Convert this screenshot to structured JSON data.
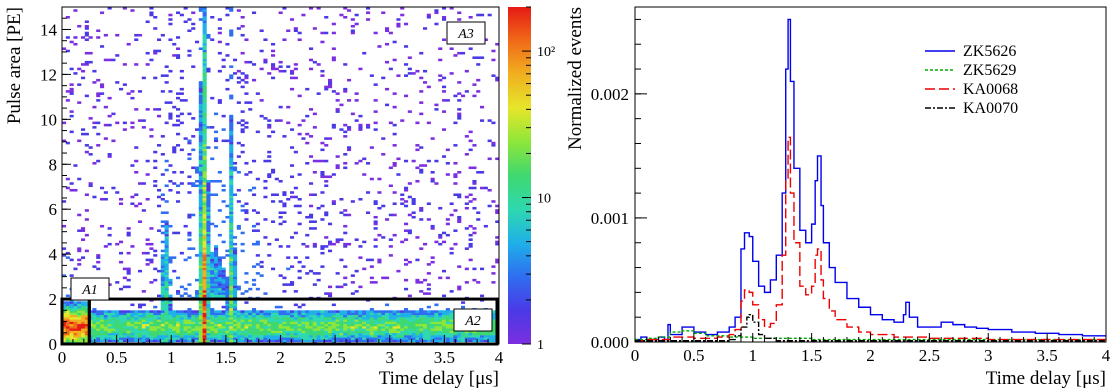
{
  "chart_data": [
    {
      "type": "heatmap",
      "xlabel": "Time delay [μs]",
      "ylabel": "Pulse area [PE]",
      "xlim": [
        0,
        4
      ],
      "ylim": [
        0,
        15
      ],
      "x_ticks": [
        0,
        0.5,
        1,
        1.5,
        2,
        2.5,
        3,
        3.5,
        4
      ],
      "x_tick_labels": [
        "0",
        "0.5",
        "1",
        "1.5",
        "2",
        "2.5",
        "3",
        "3.5",
        "4"
      ],
      "y_ticks": [
        0,
        2,
        4,
        6,
        8,
        10,
        12,
        14
      ],
      "y_tick_labels": [
        "0",
        "2",
        "4",
        "6",
        "8",
        "10",
        "12",
        "14"
      ],
      "colorbar": {
        "scale": "log",
        "range": [
          1,
          200
        ],
        "ticks": [
          1,
          10,
          100
        ],
        "tick_labels": [
          "1",
          "10",
          "10²"
        ]
      },
      "color_stops": [
        "#7b2fe0",
        "#4a3ae6",
        "#2f6ef0",
        "#1fb0e8",
        "#2fd8b0",
        "#3fd870",
        "#8ee63a",
        "#e6e62a",
        "#f0b020",
        "#f06a18",
        "#e61a14"
      ],
      "regions": [
        {
          "label": "A1",
          "x": [
            0,
            0.25
          ],
          "y": [
            0,
            2
          ]
        },
        {
          "label": "A2",
          "x": [
            0.25,
            4
          ],
          "y": [
            0,
            2
          ]
        },
        {
          "label": "A3",
          "x": [
            0,
            4
          ],
          "y": [
            2,
            15
          ]
        }
      ],
      "features": [
        {
          "description_label": "band",
          "x_center": 0.95,
          "width": 0.1
        },
        {
          "description_label": "band",
          "x_center": 1.3,
          "width": 0.08
        },
        {
          "description_label": "band",
          "x_center": 1.55,
          "width": 0.08
        }
      ]
    },
    {
      "type": "line",
      "xlabel": "Time delay [μs]",
      "ylabel": "Normalized events",
      "xlim": [
        0,
        4
      ],
      "ylim": [
        0,
        0.0027
      ],
      "x_ticks": [
        0,
        0.5,
        1,
        1.5,
        2,
        2.5,
        3,
        3.5,
        4
      ],
      "x_tick_labels": [
        "0",
        "0.5",
        "1",
        "1.5",
        "2",
        "2.5",
        "3",
        "3.5",
        "4"
      ],
      "y_ticks": [
        0,
        0.001,
        0.002
      ],
      "y_tick_labels": [
        "0.000",
        "0.001",
        "0.002"
      ],
      "legend_position": "top-right",
      "series": [
        {
          "name": "ZK5626",
          "color": "#0000ee",
          "dash": "solid",
          "x": [
            0.0,
            0.05,
            0.1,
            0.2,
            0.25,
            0.28,
            0.3,
            0.4,
            0.5,
            0.6,
            0.7,
            0.8,
            0.85,
            0.9,
            0.93,
            0.97,
            1.0,
            1.05,
            1.1,
            1.15,
            1.2,
            1.25,
            1.28,
            1.3,
            1.32,
            1.35,
            1.4,
            1.45,
            1.5,
            1.53,
            1.55,
            1.58,
            1.6,
            1.65,
            1.7,
            1.8,
            1.9,
            2.0,
            2.1,
            2.2,
            2.28,
            2.3,
            2.33,
            2.4,
            2.5,
            2.6,
            2.7,
            2.8,
            2.9,
            3.0,
            3.2,
            3.4,
            3.6,
            3.8,
            4.0
          ],
          "y": [
            2e-05,
            4e-05,
            2e-05,
            4e-05,
            2e-05,
            0.00014,
            6e-05,
            0.00012,
            8e-05,
            6e-05,
            8e-05,
            0.00012,
            0.0002,
            0.00075,
            0.00088,
            0.00085,
            0.00065,
            0.00045,
            0.0004,
            0.0005,
            0.0007,
            0.0012,
            0.0022,
            0.0026,
            0.0021,
            0.0014,
            0.0009,
            0.0008,
            0.00095,
            0.0013,
            0.0015,
            0.0011,
            0.0008,
            0.0006,
            0.00048,
            0.00035,
            0.00028,
            0.00022,
            0.00018,
            0.00016,
            0.00022,
            0.00032,
            0.0002,
            0.00012,
            0.00012,
            0.00016,
            0.00014,
            0.00012,
            0.00011,
            0.0001,
            8e-05,
            7e-05,
            6e-05,
            5e-05,
            4e-05
          ]
        },
        {
          "name": "ZK5629",
          "color": "#00aa00",
          "dash": "3,2",
          "x": [
            0.0,
            0.1,
            0.2,
            0.3,
            0.4,
            0.5,
            0.6,
            0.8,
            1.0,
            1.5,
            2.0,
            3.0,
            4.0
          ],
          "y": [
            2e-05,
            3e-05,
            4e-05,
            8e-05,
            9e-05,
            7e-05,
            5e-05,
            4e-05,
            3e-05,
            2e-05,
            2e-05,
            2e-05,
            1e-05
          ]
        },
        {
          "name": "KA0068",
          "color": "#ee0000",
          "dash": "10,4",
          "x": [
            0.0,
            0.1,
            0.2,
            0.3,
            0.4,
            0.5,
            0.6,
            0.7,
            0.8,
            0.85,
            0.9,
            0.93,
            0.97,
            1.0,
            1.05,
            1.1,
            1.15,
            1.2,
            1.25,
            1.28,
            1.3,
            1.32,
            1.35,
            1.4,
            1.45,
            1.5,
            1.53,
            1.55,
            1.58,
            1.6,
            1.65,
            1.7,
            1.8,
            1.9,
            2.0,
            2.2,
            2.5,
            3.0,
            3.5,
            4.0
          ],
          "y": [
            1e-05,
            2e-05,
            2e-05,
            4e-05,
            4e-05,
            3e-05,
            3e-05,
            4e-05,
            6e-05,
            0.0001,
            0.00033,
            0.00042,
            0.0004,
            0.0003,
            0.00018,
            0.00012,
            0.00015,
            0.0003,
            0.0007,
            0.0013,
            0.00165,
            0.0012,
            0.0008,
            0.00045,
            0.00038,
            0.00045,
            0.0007,
            0.00075,
            0.0005,
            0.00035,
            0.00025,
            0.00018,
            0.00012,
            8e-05,
            6e-05,
            4e-05,
            3e-05,
            2e-05,
            2e-05,
            1e-05
          ]
        },
        {
          "name": "KA0070",
          "color": "#000000",
          "dash": "6,2,2,2",
          "x": [
            0.0,
            0.5,
            0.8,
            0.85,
            0.9,
            0.95,
            0.97,
            1.0,
            1.05,
            1.1,
            1.2,
            1.5,
            2.0,
            3.0,
            4.0
          ],
          "y": [
            1e-05,
            1e-05,
            2e-05,
            5e-05,
            0.00012,
            0.0002,
            0.00022,
            0.00016,
            6e-05,
            3e-05,
            1e-05,
            1e-05,
            1e-05,
            1e-05,
            1e-05
          ]
        }
      ]
    }
  ]
}
